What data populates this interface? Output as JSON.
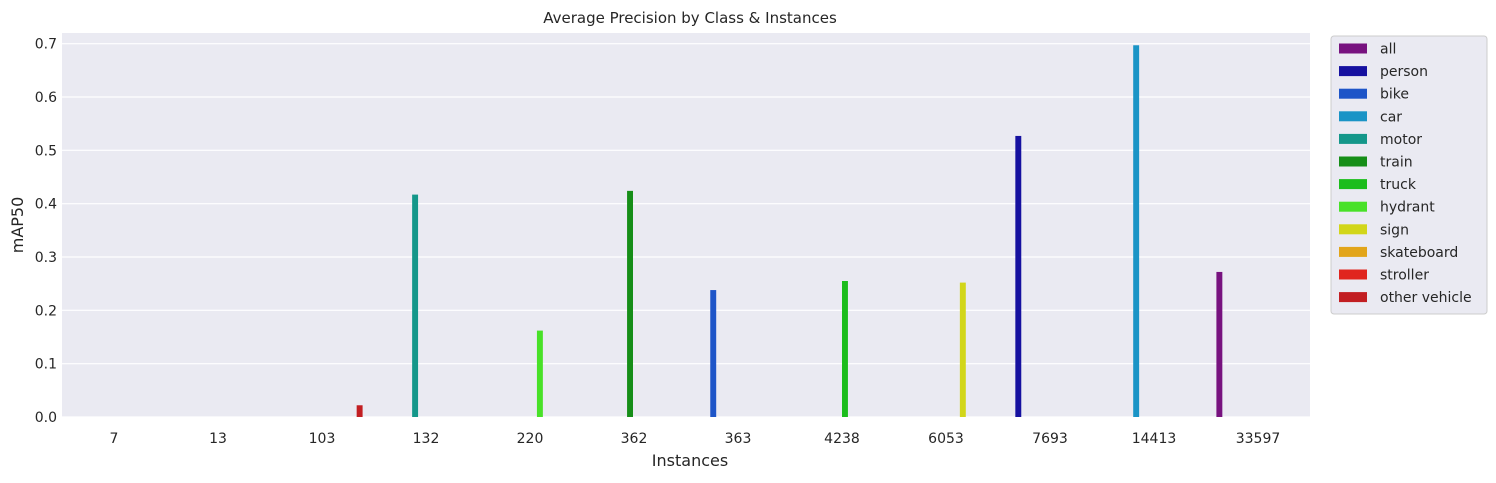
{
  "chart_data": {
    "type": "bar",
    "title": "Average Precision by Class & Instances",
    "xlabel": "Instances",
    "ylabel": "mAP50",
    "ylim": [
      0,
      0.72
    ],
    "yticks": [
      0.0,
      0.1,
      0.2,
      0.3,
      0.4,
      0.5,
      0.6,
      0.7
    ],
    "ytick_labels": [
      "0.0",
      "0.1",
      "0.2",
      "0.3",
      "0.4",
      "0.5",
      "0.6",
      "0.7"
    ],
    "grid": true,
    "legend_position": "outside-right",
    "categories": [
      "7",
      "13",
      "103",
      "132",
      "220",
      "362",
      "363",
      "4238",
      "6053",
      "7693",
      "14413",
      "33597"
    ],
    "series": [
      {
        "name": "all",
        "color": "#77127f",
        "values": [
          null,
          null,
          null,
          null,
          null,
          null,
          null,
          null,
          null,
          null,
          null,
          0.272
        ]
      },
      {
        "name": "person",
        "color": "#1611a0",
        "values": [
          null,
          null,
          null,
          null,
          null,
          null,
          null,
          null,
          null,
          0.527,
          null,
          null
        ]
      },
      {
        "name": "bike",
        "color": "#1e55c8",
        "values": [
          null,
          null,
          null,
          null,
          null,
          null,
          0.238,
          null,
          null,
          null,
          null,
          null
        ]
      },
      {
        "name": "car",
        "color": "#1a94c6",
        "values": [
          null,
          null,
          null,
          null,
          null,
          null,
          null,
          null,
          null,
          null,
          0.697,
          null
        ]
      },
      {
        "name": "motor",
        "color": "#14978a",
        "values": [
          null,
          null,
          null,
          0.417,
          null,
          null,
          null,
          null,
          null,
          null,
          null,
          null
        ]
      },
      {
        "name": "train",
        "color": "#168e18",
        "values": [
          null,
          null,
          null,
          null,
          null,
          0.424,
          null,
          null,
          null,
          null,
          null,
          null
        ]
      },
      {
        "name": "truck",
        "color": "#1cbd1c",
        "values": [
          null,
          null,
          null,
          null,
          null,
          null,
          null,
          0.255,
          null,
          null,
          null,
          null
        ]
      },
      {
        "name": "hydrant",
        "color": "#48e128",
        "values": [
          null,
          null,
          null,
          null,
          0.162,
          null,
          null,
          null,
          null,
          null,
          null,
          null
        ]
      },
      {
        "name": "sign",
        "color": "#d2d61a",
        "values": [
          null,
          null,
          null,
          null,
          null,
          null,
          null,
          null,
          0.252,
          null,
          null,
          null
        ]
      },
      {
        "name": "skateboard",
        "color": "#e2a51a",
        "values": [
          0,
          null,
          null,
          null,
          null,
          null,
          null,
          null,
          null,
          null,
          null,
          null
        ]
      },
      {
        "name": "stroller",
        "color": "#e0251f",
        "values": [
          null,
          0,
          null,
          null,
          null,
          null,
          null,
          null,
          null,
          null,
          null,
          null
        ]
      },
      {
        "name": "other vehicle",
        "color": "#c21e22",
        "values": [
          null,
          null,
          0.022,
          null,
          null,
          null,
          null,
          null,
          null,
          null,
          null,
          null
        ]
      }
    ],
    "colors": {
      "plot_background": "#eaeaf2",
      "grid": "#ffffff",
      "text": "#262626"
    }
  }
}
